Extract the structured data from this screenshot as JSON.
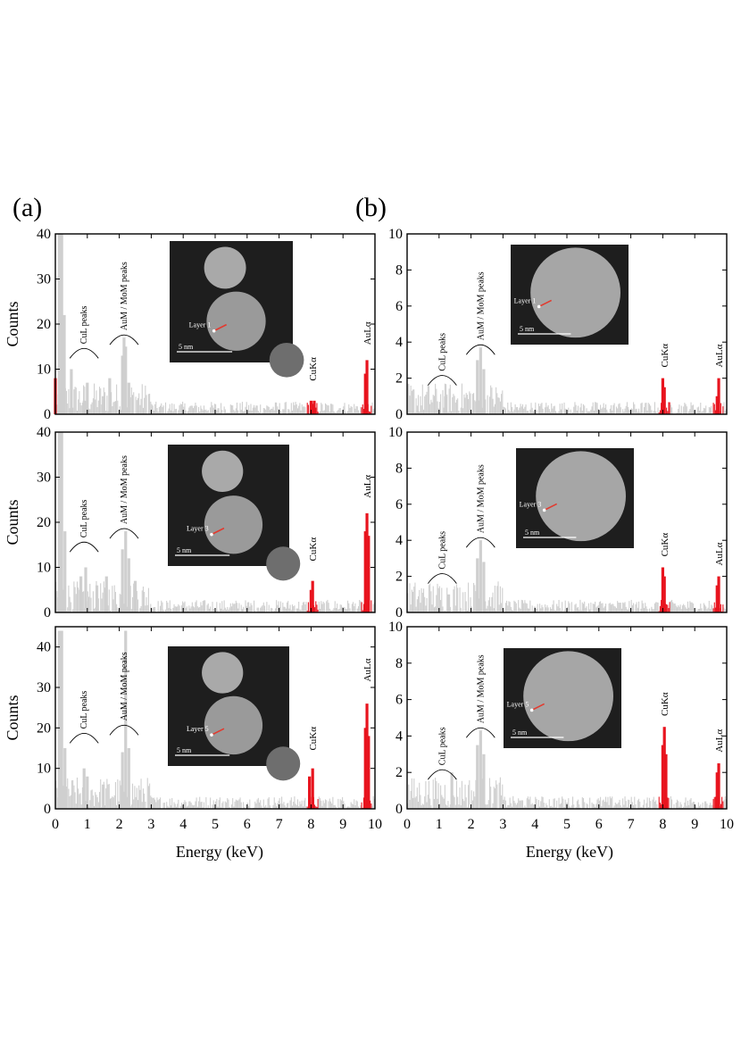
{
  "figure": {
    "panel_a_label": "(a)",
    "panel_b_label": "(b)",
    "xlabel": "Energy (keV)",
    "ylabel": "Counts",
    "scale_label": "5 nm",
    "colors": {
      "background_counts": "#cfcfcf",
      "cu_k_alpha": "#e8141e",
      "au_l_alpha": "#e8141e",
      "frame": "#000000",
      "probe_marker": "#e23a2f"
    }
  },
  "chart_data": [
    {
      "id": "a1",
      "type": "bar",
      "x_range": [
        0,
        10
      ],
      "ylim": [
        0,
        40
      ],
      "y_ticks": [
        0,
        10,
        20,
        30,
        40
      ],
      "x_ticks": [
        0,
        1,
        2,
        3,
        4,
        5,
        6,
        7,
        8,
        9,
        10
      ],
      "show_ylabel": true,
      "peaks": [
        {
          "x": 0.0,
          "y": 8,
          "color": "red"
        },
        {
          "x": 0.12,
          "y": 40
        },
        {
          "x": 0.2,
          "y": 40
        },
        {
          "x": 0.28,
          "y": 22
        },
        {
          "x": 0.5,
          "y": 10
        },
        {
          "x": 0.9,
          "y": 3
        },
        {
          "x": 1.0,
          "y": 7
        },
        {
          "x": 1.5,
          "y": 4
        },
        {
          "x": 1.7,
          "y": 8
        },
        {
          "x": 2.1,
          "y": 13
        },
        {
          "x": 2.15,
          "y": 17
        },
        {
          "x": 2.2,
          "y": 15
        },
        {
          "x": 2.3,
          "y": 7
        },
        {
          "x": 8.0,
          "y": 3,
          "color": "red"
        },
        {
          "x": 8.1,
          "y": 3,
          "color": "red"
        },
        {
          "x": 9.7,
          "y": 9,
          "color": "red"
        },
        {
          "x": 9.75,
          "y": 12,
          "color": "red"
        }
      ],
      "annotations": [
        {
          "text": "CuL peaks",
          "x": 0.9,
          "y": 14
        },
        {
          "text": "AuM / MoM peaks",
          "x": 2.15,
          "y": 17
        },
        {
          "text": "CuKα",
          "x": 8.05,
          "y": 7
        },
        {
          "text": "AuLα",
          "x": 9.75,
          "y": 15
        }
      ],
      "inset": {
        "layer_label": "Layer 1"
      }
    },
    {
      "id": "a2",
      "type": "bar",
      "x_range": [
        0,
        10
      ],
      "ylim": [
        0,
        40
      ],
      "y_ticks": [
        0,
        10,
        20,
        30,
        40
      ],
      "x_ticks": [
        0,
        1,
        2,
        3,
        4,
        5,
        6,
        7,
        8,
        9,
        10
      ],
      "show_ylabel": true,
      "peaks": [
        {
          "x": 0.12,
          "y": 40
        },
        {
          "x": 0.2,
          "y": 40
        },
        {
          "x": 0.3,
          "y": 18
        },
        {
          "x": 0.8,
          "y": 8
        },
        {
          "x": 0.95,
          "y": 10
        },
        {
          "x": 1.3,
          "y": 6
        },
        {
          "x": 1.6,
          "y": 8
        },
        {
          "x": 2.1,
          "y": 14
        },
        {
          "x": 2.2,
          "y": 18
        },
        {
          "x": 2.3,
          "y": 12
        },
        {
          "x": 2.5,
          "y": 7
        },
        {
          "x": 8.0,
          "y": 5,
          "color": "red"
        },
        {
          "x": 8.05,
          "y": 7,
          "color": "red"
        },
        {
          "x": 9.7,
          "y": 18,
          "color": "red"
        },
        {
          "x": 9.75,
          "y": 22,
          "color": "red"
        },
        {
          "x": 9.8,
          "y": 17,
          "color": "red"
        }
      ],
      "annotations": [
        {
          "text": "CuL peaks",
          "x": 0.9,
          "y": 15
        },
        {
          "text": "AuM / MoM peaks",
          "x": 2.15,
          "y": 18
        },
        {
          "text": "CuKα",
          "x": 8.05,
          "y": 11
        },
        {
          "text": "AuLα",
          "x": 9.75,
          "y": 25
        }
      ],
      "inset": {
        "layer_label": "Layer 3"
      }
    },
    {
      "id": "a3",
      "type": "bar",
      "x_range": [
        0,
        10
      ],
      "ylim": [
        0,
        45
      ],
      "y_ticks": [
        0,
        10,
        20,
        30,
        40
      ],
      "x_ticks": [
        0,
        1,
        2,
        3,
        4,
        5,
        6,
        7,
        8,
        9,
        10
      ],
      "show_ylabel": true,
      "peaks": [
        {
          "x": 0.12,
          "y": 44
        },
        {
          "x": 0.2,
          "y": 44
        },
        {
          "x": 0.3,
          "y": 15
        },
        {
          "x": 0.9,
          "y": 10
        },
        {
          "x": 1.0,
          "y": 8
        },
        {
          "x": 1.5,
          "y": 6
        },
        {
          "x": 2.1,
          "y": 14
        },
        {
          "x": 2.2,
          "y": 44
        },
        {
          "x": 2.3,
          "y": 15
        },
        {
          "x": 7.95,
          "y": 8,
          "color": "red"
        },
        {
          "x": 8.05,
          "y": 10,
          "color": "red"
        },
        {
          "x": 9.7,
          "y": 20,
          "color": "red"
        },
        {
          "x": 9.75,
          "y": 26,
          "color": "red"
        },
        {
          "x": 9.8,
          "y": 18,
          "color": "red"
        }
      ],
      "annotations": [
        {
          "text": "CuL peaks",
          "x": 0.9,
          "y": 18
        },
        {
          "text": "AuM / MoM peaks",
          "x": 2.15,
          "y": 20
        },
        {
          "text": "CuKα",
          "x": 8.05,
          "y": 14
        },
        {
          "text": "AuLα",
          "x": 9.75,
          "y": 31
        }
      ],
      "inset": {
        "layer_label": "Layer 5"
      }
    },
    {
      "id": "b1",
      "type": "bar",
      "x_range": [
        0,
        10
      ],
      "ylim": [
        0,
        10
      ],
      "y_ticks": [
        0,
        2,
        4,
        6,
        8,
        10
      ],
      "x_ticks": [
        0,
        1,
        2,
        3,
        4,
        5,
        6,
        7,
        8,
        9,
        10
      ],
      "show_ylabel": false,
      "peaks": [
        {
          "x": 1.2,
          "y": 1
        },
        {
          "x": 2.2,
          "y": 3
        },
        {
          "x": 2.3,
          "y": 3.7
        },
        {
          "x": 2.4,
          "y": 2.5
        },
        {
          "x": 8.0,
          "y": 2,
          "color": "red"
        },
        {
          "x": 8.05,
          "y": 1.5,
          "color": "red"
        },
        {
          "x": 9.75,
          "y": 2,
          "color": "red"
        },
        {
          "x": 9.7,
          "y": 1,
          "color": "red"
        }
      ],
      "annotations": [
        {
          "text": "CuL peaks",
          "x": 1.1,
          "y": 2
        },
        {
          "text": "AuM / MoM peaks",
          "x": 2.3,
          "y": 3.7
        },
        {
          "text": "CuKα",
          "x": 8.05,
          "y": 2.5
        },
        {
          "text": "AuLα",
          "x": 9.75,
          "y": 2.5
        }
      ],
      "inset": {
        "layer_label": "Layer 1"
      }
    },
    {
      "id": "b2",
      "type": "bar",
      "x_range": [
        0,
        10
      ],
      "ylim": [
        0,
        10
      ],
      "y_ticks": [
        0,
        2,
        4,
        6,
        8,
        10
      ],
      "x_ticks": [
        0,
        1,
        2,
        3,
        4,
        5,
        6,
        7,
        8,
        9,
        10
      ],
      "show_ylabel": false,
      "peaks": [
        {
          "x": 1.3,
          "y": 1
        },
        {
          "x": 2.2,
          "y": 3
        },
        {
          "x": 2.3,
          "y": 4
        },
        {
          "x": 2.4,
          "y": 2.8
        },
        {
          "x": 8.0,
          "y": 2.5,
          "color": "red"
        },
        {
          "x": 8.05,
          "y": 2,
          "color": "red"
        },
        {
          "x": 9.7,
          "y": 1.5,
          "color": "red"
        },
        {
          "x": 9.75,
          "y": 2,
          "color": "red"
        }
      ],
      "annotations": [
        {
          "text": "CuL peaks",
          "x": 1.1,
          "y": 2
        },
        {
          "text": "AuM / MoM peaks",
          "x": 2.3,
          "y": 4
        },
        {
          "text": "CuKα",
          "x": 8.05,
          "y": 3
        },
        {
          "text": "AuLα",
          "x": 9.75,
          "y": 2.5
        }
      ],
      "inset": {
        "layer_label": "Layer 3"
      }
    },
    {
      "id": "b3",
      "type": "bar",
      "x_range": [
        0,
        10
      ],
      "ylim": [
        0,
        10
      ],
      "y_ticks": [
        0,
        2,
        4,
        6,
        8,
        10
      ],
      "x_ticks": [
        0,
        1,
        2,
        3,
        4,
        5,
        6,
        7,
        8,
        9,
        10
      ],
      "show_ylabel": false,
      "peaks": [
        {
          "x": 1.4,
          "y": 2
        },
        {
          "x": 2.2,
          "y": 3.5
        },
        {
          "x": 2.3,
          "y": 4.3
        },
        {
          "x": 2.4,
          "y": 3
        },
        {
          "x": 8.0,
          "y": 3.5,
          "color": "red"
        },
        {
          "x": 8.05,
          "y": 4.5,
          "color": "red"
        },
        {
          "x": 8.1,
          "y": 3,
          "color": "red"
        },
        {
          "x": 9.7,
          "y": 2,
          "color": "red"
        },
        {
          "x": 9.75,
          "y": 2.5,
          "color": "red"
        }
      ],
      "annotations": [
        {
          "text": "CuL peaks",
          "x": 1.1,
          "y": 2
        },
        {
          "text": "AuM / MoM peaks",
          "x": 2.3,
          "y": 4.3
        },
        {
          "text": "CuKα",
          "x": 8.05,
          "y": 5
        },
        {
          "text": "AuLα",
          "x": 9.75,
          "y": 3
        }
      ],
      "inset": {
        "layer_label": "Layer 5"
      }
    }
  ]
}
